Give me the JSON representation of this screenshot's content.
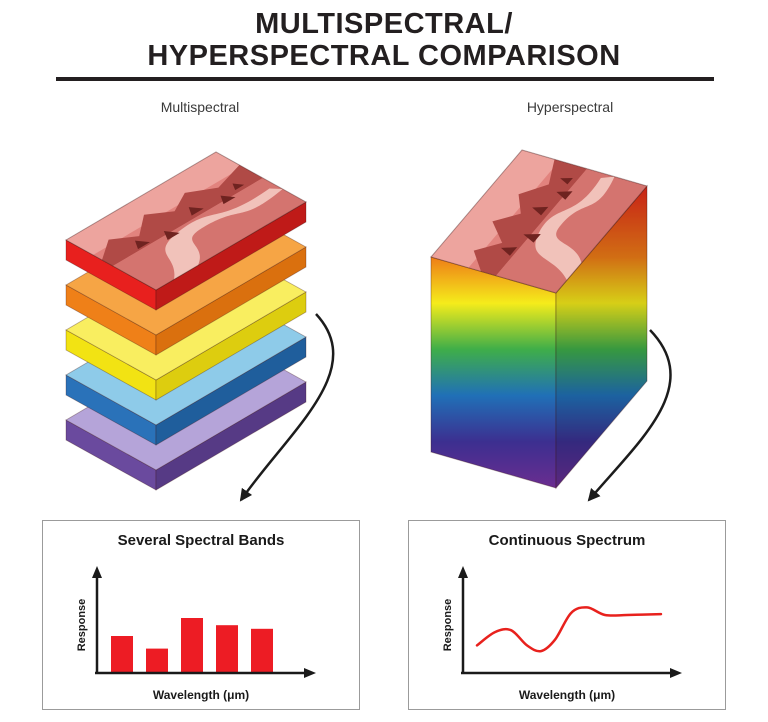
{
  "title": {
    "line1": "MULTISPECTRAL/",
    "line2": "HYPERSPECTRAL COMPARISON"
  },
  "panels": {
    "left": {
      "label": "Multispectral"
    },
    "right": {
      "label": "Hyperspectral"
    }
  },
  "colors": {
    "title_text": "#231f20",
    "bar": "#ed1c24",
    "line": "#e8211d",
    "axis": "#1a1a1a",
    "box_border": "#9b9b9b"
  },
  "stack_layers": [
    {
      "name": "red",
      "top": "image",
      "front": "#e8201e",
      "side": "#bf1a18"
    },
    {
      "name": "orange",
      "top": "#f6a545",
      "front": "#ef8018",
      "side": "#da700e"
    },
    {
      "name": "yellow",
      "top": "#f9ee60",
      "front": "#f2e313",
      "side": "#ddcd0f"
    },
    {
      "name": "blue",
      "top": "#8ecbe9",
      "front": "#2a72b9",
      "side": "#1f5e9c"
    },
    {
      "name": "purple",
      "top": "#b5a4d9",
      "front": "#6a4a9e",
      "side": "#563a85"
    }
  ],
  "chart_data": [
    {
      "type": "bar",
      "title": "Several Spectral Bands",
      "ylabel": "Response",
      "xlabel": "Wavelength (μm)",
      "values": [
        0.4,
        0.26,
        0.6,
        0.52,
        0.48
      ]
    },
    {
      "type": "line",
      "title": "Continuous Spectrum",
      "ylabel": "Response",
      "xlabel": "Wavelength (μm)",
      "points": [
        [
          0.03,
          0.28
        ],
        [
          0.12,
          0.42
        ],
        [
          0.2,
          0.44
        ],
        [
          0.28,
          0.28
        ],
        [
          0.35,
          0.22
        ],
        [
          0.42,
          0.34
        ],
        [
          0.5,
          0.62
        ],
        [
          0.58,
          0.68
        ],
        [
          0.67,
          0.6
        ],
        [
          0.78,
          0.6
        ],
        [
          0.95,
          0.61
        ]
      ]
    }
  ]
}
